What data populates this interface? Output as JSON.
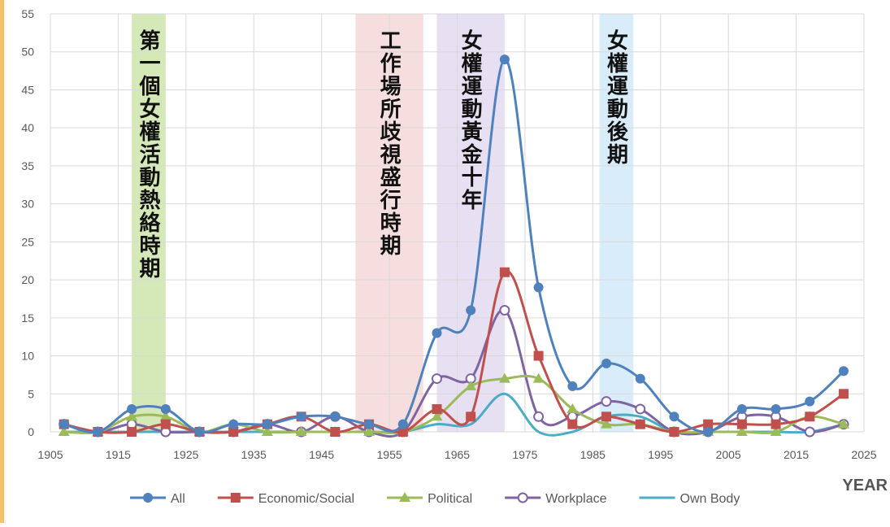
{
  "chart_data": {
    "type": "line",
    "x_label": "YEAR",
    "x": [
      1907,
      1912,
      1917,
      1922,
      1927,
      1932,
      1937,
      1942,
      1947,
      1952,
      1957,
      1962,
      1967,
      1972,
      1977,
      1982,
      1987,
      1992,
      1997,
      2002,
      2007,
      2012,
      2017,
      2022
    ],
    "xlim": [
      1905,
      2025
    ],
    "xticks": [
      1905,
      1915,
      1925,
      1935,
      1945,
      1955,
      1965,
      1975,
      1985,
      1995,
      2005,
      2015,
      2025
    ],
    "ylim": [
      0,
      55
    ],
    "yticks": [
      0,
      5,
      10,
      15,
      20,
      25,
      30,
      35,
      40,
      45,
      50,
      55
    ],
    "grid": true,
    "legend": "bottom",
    "bands": [
      {
        "start": 1917,
        "end": 1922,
        "color": "#d5e8b8",
        "label": "第一個女權活動熱絡時期"
      },
      {
        "start": 1950,
        "end": 1960,
        "color": "#f6dede",
        "label": "工作場所歧視盛行時期"
      },
      {
        "start": 1962,
        "end": 1972,
        "color": "#e7e0f2",
        "label": "女權運動黃金十年"
      },
      {
        "start": 1986,
        "end": 1991,
        "color": "#d9ecfa",
        "label": "女權運動後期"
      }
    ],
    "series": [
      {
        "name": "All",
        "color": "#4f81bd",
        "marker": "circle",
        "values": [
          1,
          0,
          3,
          3,
          0,
          1,
          1,
          2,
          2,
          1,
          1,
          13,
          16,
          49,
          19,
          6,
          9,
          7,
          2,
          0,
          3,
          3,
          4,
          8
        ]
      },
      {
        "name": "Economic/Social",
        "color": "#c0504d",
        "marker": "square",
        "values": [
          1,
          0,
          0,
          1,
          0,
          0,
          1,
          2,
          0,
          1,
          0,
          3,
          2,
          21,
          10,
          1,
          2,
          1,
          0,
          1,
          1,
          1,
          2,
          5
        ]
      },
      {
        "name": "Political",
        "color": "#9bbb59",
        "marker": "triangle",
        "values": [
          0,
          0,
          2,
          2,
          0,
          1,
          0,
          0,
          0,
          0,
          0,
          2,
          6,
          7,
          7,
          3,
          1,
          1,
          0,
          0,
          0,
          0,
          2,
          1
        ]
      },
      {
        "name": "Workplace",
        "color": "#8064a2",
        "marker": "ring",
        "values": [
          1,
          0,
          1,
          0,
          0,
          0,
          1,
          0,
          2,
          0,
          0,
          7,
          7,
          16,
          2,
          2,
          4,
          3,
          0,
          0,
          2,
          2,
          0,
          1
        ]
      },
      {
        "name": "Own Body",
        "color": "#4bacc6",
        "marker": "none",
        "values": [
          0,
          0,
          0,
          0,
          0,
          0,
          0,
          0,
          0,
          0,
          0,
          1,
          1,
          5,
          0,
          0,
          2,
          2,
          0,
          0,
          0,
          0,
          0,
          1
        ]
      }
    ]
  }
}
